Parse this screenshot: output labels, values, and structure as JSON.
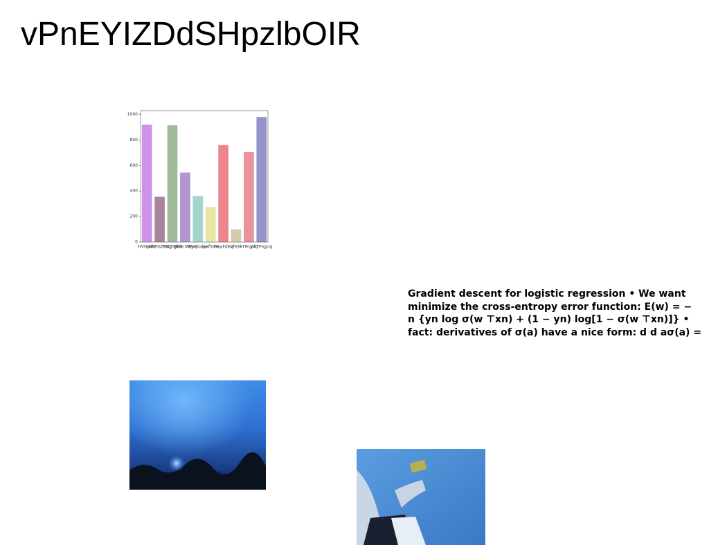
{
  "header": {
    "title": "vPnEYIZDdSHpzlbOIR"
  },
  "chart_data": {
    "type": "bar",
    "categories": [
      "HVHjAfQ",
      "mHTGZYNg",
      "TUCYMkD",
      "gNecIXbyV",
      "Wvqlozqe",
      "iouf5Cle",
      "FrqaFdEV",
      "qfeSk",
      "hTPogUq",
      "AhTPogUq"
    ],
    "values": [
      920,
      355,
      915,
      545,
      362,
      275,
      760,
      100,
      705,
      980
    ],
    "colors": [
      "#c77fe8",
      "#9a6e8e",
      "#8fb08a",
      "#a783c6",
      "#93d0c6",
      "#e3e38f",
      "#e9707a",
      "#cfc39d",
      "#e57f8a",
      "#8080c0"
    ],
    "ylim": [
      0,
      1030
    ],
    "yticks": [
      0,
      200,
      400,
      600,
      800,
      1000
    ]
  },
  "text_block": {
    "lines": [
      "Gradient descent for logistic regression • We want",
      "minimize the cross-entropy error function: E(w) = −",
      "n {yn log σ(w ⊤xn) + (1 − yn) log[1 − σ(w ⊤xn)]} •",
      "fact: derivatives of σ(a) have a nice form: d d aσ(a) ="
    ]
  }
}
